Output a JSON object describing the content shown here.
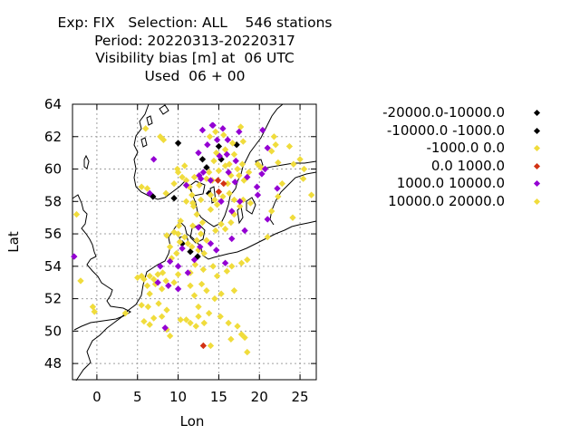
{
  "title": {
    "line1": "Exp: FIX   Selection: ALL    546 stations",
    "line2": "Period: 20220313-20220317",
    "line3": "Visibility bias [m] at  06 UTC",
    "line4": "Used  06 + 00"
  },
  "axes": {
    "xlabel": "Lon",
    "ylabel": "Lat",
    "xlim": [
      -3,
      27
    ],
    "ylim": [
      47,
      64
    ],
    "xticks": [
      0,
      5,
      10,
      15,
      20,
      25
    ],
    "yticks": [
      48,
      50,
      52,
      54,
      56,
      58,
      60,
      62,
      64
    ],
    "grid": true
  },
  "legend": {
    "placement": "right",
    "items": [
      {
        "label": "-20000.0-10000.0",
        "color": "#000000"
      },
      {
        "label": "-10000.0 -1000.0",
        "color": "#000000"
      },
      {
        "label": "-1000.0 0.0",
        "color": "#f0dc3c"
      },
      {
        "label": "0.0 1000.0",
        "color": "#d23214"
      },
      {
        "label": "1000.0 10000.0",
        "color": "#9400d3"
      },
      {
        "label": "10000.0 20000.0",
        "color": "#f0dc3c"
      }
    ]
  },
  "chart_data": {
    "type": "scatter",
    "x_unit": "degrees longitude",
    "y_unit": "degrees latitude",
    "series": [
      {
        "name": "-10000.0 -1000.0",
        "color": "#000000",
        "points": [
          [
            10,
            61.6
          ],
          [
            13,
            60.6
          ],
          [
            13.5,
            60.1
          ],
          [
            15,
            61.4
          ],
          [
            17.2,
            61.5
          ],
          [
            15.3,
            60.6
          ],
          [
            9.5,
            58.2
          ],
          [
            13.8,
            58.5
          ],
          [
            6.9,
            58.3
          ],
          [
            10.5,
            55.4
          ],
          [
            11.5,
            54.9
          ],
          [
            12.4,
            54.6
          ]
        ]
      },
      {
        "name": "-1000.0 0.0",
        "color": "#f0dc3c",
        "points": [
          [
            -2.5,
            57.2
          ],
          [
            -2,
            53.1
          ],
          [
            -0.5,
            51.5
          ],
          [
            -0.3,
            51.2
          ],
          [
            3.5,
            51.1
          ],
          [
            5,
            53.3
          ],
          [
            5.5,
            53.4
          ],
          [
            5.8,
            53.2
          ],
          [
            6.2,
            52.8
          ],
          [
            6.5,
            53.4
          ],
          [
            7,
            53.2
          ],
          [
            7.5,
            53.5
          ],
          [
            6.5,
            52.3
          ],
          [
            7.2,
            52.9
          ],
          [
            8,
            52.6
          ],
          [
            8.5,
            53.1
          ],
          [
            9.5,
            53.0
          ],
          [
            10,
            53.5
          ],
          [
            8.1,
            53.6
          ],
          [
            9.2,
            54.5
          ],
          [
            9.8,
            54.8
          ],
          [
            9.0,
            55.2
          ],
          [
            8.6,
            55.9
          ],
          [
            9.5,
            56.1
          ],
          [
            10.0,
            56.0
          ],
          [
            10.2,
            55.5
          ],
          [
            10.8,
            55.8
          ],
          [
            11.2,
            55.4
          ],
          [
            11.7,
            55.2
          ],
          [
            12.3,
            55.6
          ],
          [
            12.5,
            55.0
          ],
          [
            12.1,
            54.1
          ],
          [
            10.1,
            56.5
          ],
          [
            10.3,
            56.8
          ],
          [
            11.8,
            56.5
          ],
          [
            12.8,
            56.0
          ],
          [
            13.5,
            55.6
          ],
          [
            13.2,
            54.8
          ],
          [
            14.3,
            54.0
          ],
          [
            11.5,
            53.6
          ],
          [
            13.1,
            53.8
          ],
          [
            12.9,
            52.9
          ],
          [
            13.5,
            52.5
          ],
          [
            14.5,
            52.0
          ],
          [
            12.0,
            52.2
          ],
          [
            11.5,
            52.8
          ],
          [
            12.5,
            51.5
          ],
          [
            13.8,
            51.1
          ],
          [
            15.2,
            50.9
          ],
          [
            16.2,
            50.5
          ],
          [
            17.3,
            50.3
          ],
          [
            17.8,
            49.8
          ],
          [
            16.5,
            49.5
          ],
          [
            18.2,
            49.6
          ],
          [
            18.5,
            48.7
          ],
          [
            14.0,
            49.1
          ],
          [
            11.0,
            50.7
          ],
          [
            11.5,
            50.5
          ],
          [
            12.2,
            50.3
          ],
          [
            12.5,
            50.9
          ],
          [
            13.2,
            50.5
          ],
          [
            10.3,
            50.7
          ],
          [
            9.0,
            49.7
          ],
          [
            8.6,
            50.1
          ],
          [
            8.0,
            50.9
          ],
          [
            7.0,
            50.8
          ],
          [
            6.5,
            50.4
          ],
          [
            5.8,
            50.6
          ],
          [
            5.5,
            51.6
          ],
          [
            6.3,
            51.5
          ],
          [
            7.6,
            51.7
          ],
          [
            8.6,
            51.3
          ],
          [
            16,
            53.7
          ],
          [
            16.9,
            52.5
          ],
          [
            15.3,
            52.3
          ],
          [
            14.8,
            53.4
          ],
          [
            16.6,
            54.0
          ],
          [
            17.8,
            54.2
          ],
          [
            18.5,
            54.4
          ],
          [
            14.4,
            60.5
          ],
          [
            15.0,
            59.9
          ],
          [
            14.2,
            59.3
          ],
          [
            13.5,
            59.4
          ],
          [
            12.6,
            59.0
          ],
          [
            12.0,
            59.5
          ],
          [
            11.0,
            59.3
          ],
          [
            11.4,
            58.9
          ],
          [
            11.7,
            58.4
          ],
          [
            11.0,
            58.0
          ],
          [
            11.9,
            57.7
          ],
          [
            12.3,
            57.2
          ],
          [
            13.0,
            56.7
          ],
          [
            14.0,
            57.5
          ],
          [
            14.8,
            57.8
          ],
          [
            15.5,
            58.3
          ],
          [
            16.3,
            58.5
          ],
          [
            16.9,
            58.1
          ],
          [
            18.1,
            59.3
          ],
          [
            17.5,
            59.6
          ],
          [
            16.5,
            59.6
          ],
          [
            17.3,
            60.0
          ],
          [
            17.9,
            60.3
          ],
          [
            16.3,
            60.3
          ],
          [
            16.9,
            60.9
          ],
          [
            15.8,
            61.2
          ],
          [
            16.7,
            61.6
          ],
          [
            15.6,
            62.1
          ],
          [
            14.6,
            62.3
          ],
          [
            13.9,
            62.0
          ],
          [
            14.7,
            61.0
          ],
          [
            18.0,
            58.1
          ],
          [
            17.6,
            57.7
          ],
          [
            15.3,
            56.6
          ],
          [
            14.6,
            56.2
          ],
          [
            15.8,
            56.3
          ],
          [
            16.5,
            56.7
          ],
          [
            16.9,
            57.2
          ],
          [
            14.0,
            58.4
          ],
          [
            18.7,
            59.8
          ],
          [
            20.2,
            60.1
          ],
          [
            19.8,
            60.3
          ],
          [
            22.3,
            60.4
          ],
          [
            24.2,
            60.3
          ],
          [
            25.0,
            60.6
          ],
          [
            25.5,
            60.0
          ],
          [
            22.0,
            61.5
          ],
          [
            21.5,
            61.1
          ],
          [
            23.7,
            61.4
          ],
          [
            21.8,
            62.0
          ],
          [
            17.7,
            62.6
          ],
          [
            18.0,
            61.7
          ],
          [
            8.2,
            61.8
          ],
          [
            7.8,
            62.0
          ],
          [
            6.0,
            62.5
          ],
          [
            10.0,
            59.8
          ],
          [
            10.5,
            59.5
          ],
          [
            9.9,
            60.0
          ],
          [
            10.8,
            60.2
          ],
          [
            9.5,
            59.1
          ],
          [
            8.5,
            58.5
          ],
          [
            5.5,
            58.9
          ],
          [
            6.2,
            58.8
          ],
          [
            13.8,
            59.8
          ],
          [
            14.5,
            58.1
          ],
          [
            12.8,
            58.1
          ],
          [
            11.8,
            57.9
          ],
          [
            15.8,
            60.2
          ],
          [
            16.1,
            59.1
          ],
          [
            22.3,
            58.3
          ],
          [
            21.5,
            57.4
          ],
          [
            24.1,
            57.0
          ],
          [
            26.4,
            58.4
          ],
          [
            25.4,
            59.4
          ],
          [
            22.8,
            59.1
          ],
          [
            21.0,
            55.8
          ],
          [
            18.9,
            57.9
          ]
        ]
      },
      {
        "name": "0.0 1000.0",
        "color": "#d23214",
        "points": [
          [
            14.9,
            59.3
          ],
          [
            15.6,
            59.1
          ],
          [
            15.0,
            58.6
          ],
          [
            13.1,
            49.1
          ]
        ]
      },
      {
        "name": "1000.0 10000.0",
        "color": "#9400d3",
        "points": [
          [
            -2.8,
            54.6
          ],
          [
            6.5,
            58.5
          ],
          [
            7.0,
            60.6
          ],
          [
            12.6,
            59.6
          ],
          [
            13.6,
            61.5
          ],
          [
            14.3,
            62.7
          ],
          [
            15.5,
            62.5
          ],
          [
            16.1,
            61.8
          ],
          [
            17.5,
            62.3
          ],
          [
            14.8,
            61.8
          ],
          [
            13.0,
            62.4
          ],
          [
            12.5,
            61.0
          ],
          [
            12.8,
            59.4
          ],
          [
            13.1,
            59.8
          ],
          [
            14.0,
            59.3
          ],
          [
            11.0,
            59.0
          ],
          [
            14.2,
            62.7
          ],
          [
            15.1,
            60.8
          ],
          [
            16.2,
            59.8
          ],
          [
            17.0,
            59.2
          ],
          [
            18.5,
            59.5
          ],
          [
            20.7,
            60.0
          ],
          [
            21.0,
            61.3
          ],
          [
            20.4,
            62.4
          ],
          [
            19.8,
            58.4
          ],
          [
            22.2,
            58.8
          ],
          [
            17.6,
            58.0
          ],
          [
            15.3,
            58.0
          ],
          [
            16.6,
            57.4
          ],
          [
            18.2,
            56.2
          ],
          [
            14.7,
            55.0
          ],
          [
            15.8,
            54.2
          ],
          [
            14.0,
            55.4
          ],
          [
            12.5,
            56.4
          ],
          [
            10.0,
            54.0
          ],
          [
            9.0,
            54.3
          ],
          [
            7.8,
            54.0
          ],
          [
            8.8,
            52.8
          ],
          [
            10.0,
            52.6
          ],
          [
            7.5,
            53.0
          ],
          [
            11.2,
            53.6
          ],
          [
            10.5,
            55.1
          ],
          [
            12.0,
            54.4
          ],
          [
            8.4,
            50.2
          ],
          [
            16.0,
            60.9
          ],
          [
            17.1,
            60.5
          ],
          [
            21.0,
            56.9
          ],
          [
            20.3,
            59.7
          ],
          [
            19.7,
            58.9
          ],
          [
            16.6,
            55.7
          ],
          [
            12.7,
            55.2
          ]
        ]
      }
    ]
  }
}
